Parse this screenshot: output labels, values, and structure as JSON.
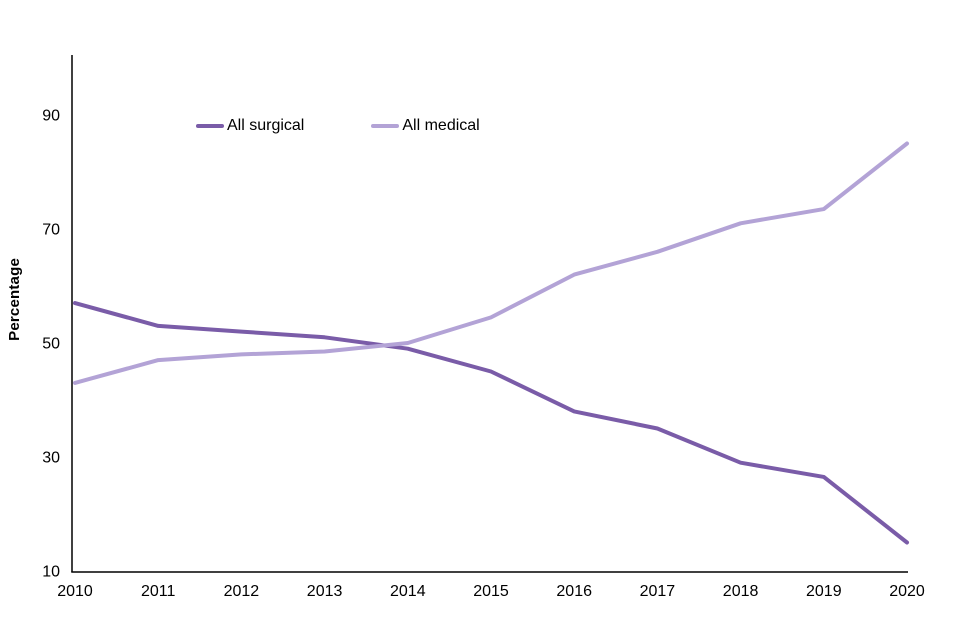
{
  "chart_data": {
    "type": "line",
    "x": [
      2010,
      2011,
      2012,
      2013,
      2014,
      2015,
      2016,
      2017,
      2018,
      2019,
      2020
    ],
    "series": [
      {
        "name": "All surgical",
        "color": "#7a5ca8",
        "values": [
          57,
          53,
          52,
          51,
          49,
          45,
          38,
          35,
          29,
          26.5,
          15
        ]
      },
      {
        "name": "All medical",
        "color": "#b3a3d6",
        "values": [
          43,
          47,
          48,
          48.5,
          50,
          54.5,
          62,
          66,
          71,
          73.5,
          85
        ]
      }
    ],
    "title": "",
    "xlabel": "",
    "ylabel": "Percentage",
    "ylim": [
      10,
      90
    ],
    "yticks": [
      10,
      30,
      50,
      70,
      90
    ],
    "grid": false,
    "legend_position": "top-inline"
  },
  "axis": {
    "color": "#000000",
    "text_color": "#000000"
  }
}
